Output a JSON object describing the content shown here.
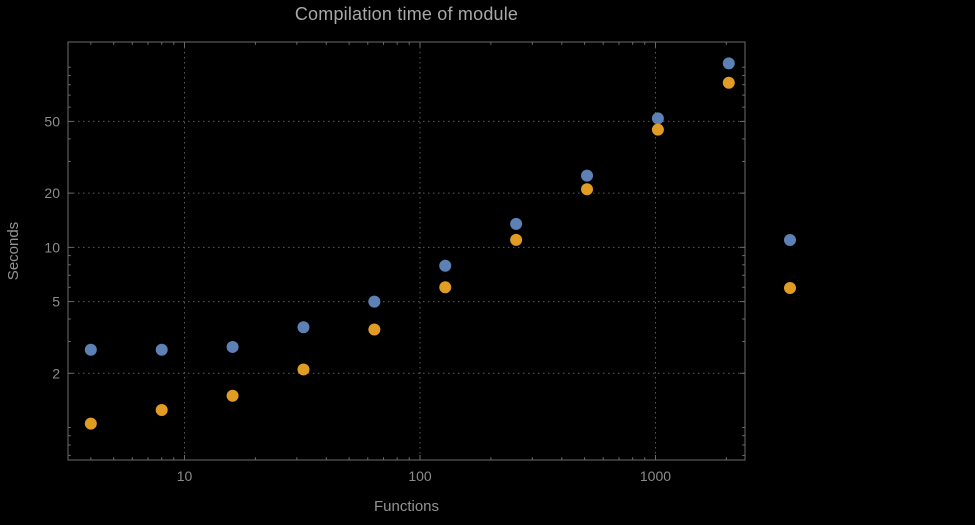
{
  "chart_data": {
    "type": "scatter",
    "title": "Compilation time of module",
    "xlabel": "Functions",
    "ylabel": "Seconds",
    "xscale": "log",
    "yscale": "log",
    "xlim": [
      3.2,
      2400
    ],
    "ylim": [
      0.66,
      138
    ],
    "grid": "dotted",
    "x": [
      4,
      8,
      16,
      32,
      64,
      128,
      256,
      512,
      1024,
      2048
    ],
    "series": [
      {
        "name": "series-blue",
        "color": "#5E81B5",
        "values": [
          2.7,
          2.7,
          2.8,
          3.6,
          5.0,
          7.9,
          13.5,
          25,
          52,
          105
        ]
      },
      {
        "name": "series-orange",
        "color": "#E19C24",
        "values": [
          1.05,
          1.25,
          1.5,
          2.1,
          3.5,
          6.0,
          11,
          21,
          45,
          82
        ]
      }
    ],
    "xticks": {
      "values": [
        10,
        100,
        1000
      ],
      "labels": [
        "10",
        "100",
        "1000"
      ]
    },
    "yticks": {
      "values": [
        2,
        5,
        10,
        20,
        50
      ],
      "labels": [
        "2",
        "5",
        "10",
        "20",
        "50"
      ]
    },
    "legend": {
      "position": "right",
      "entries": [
        {
          "label": "",
          "color": "#5E81B5"
        },
        {
          "label": "",
          "color": "#E19C24"
        }
      ]
    },
    "marker_size_px": 6,
    "colors": {
      "background": "#000000",
      "frame": "#6b6b6b",
      "grid": "#5c5c5c",
      "title_text": "#a8a8a8",
      "label_text": "#939393",
      "tick_text": "#8c8c8c"
    }
  }
}
